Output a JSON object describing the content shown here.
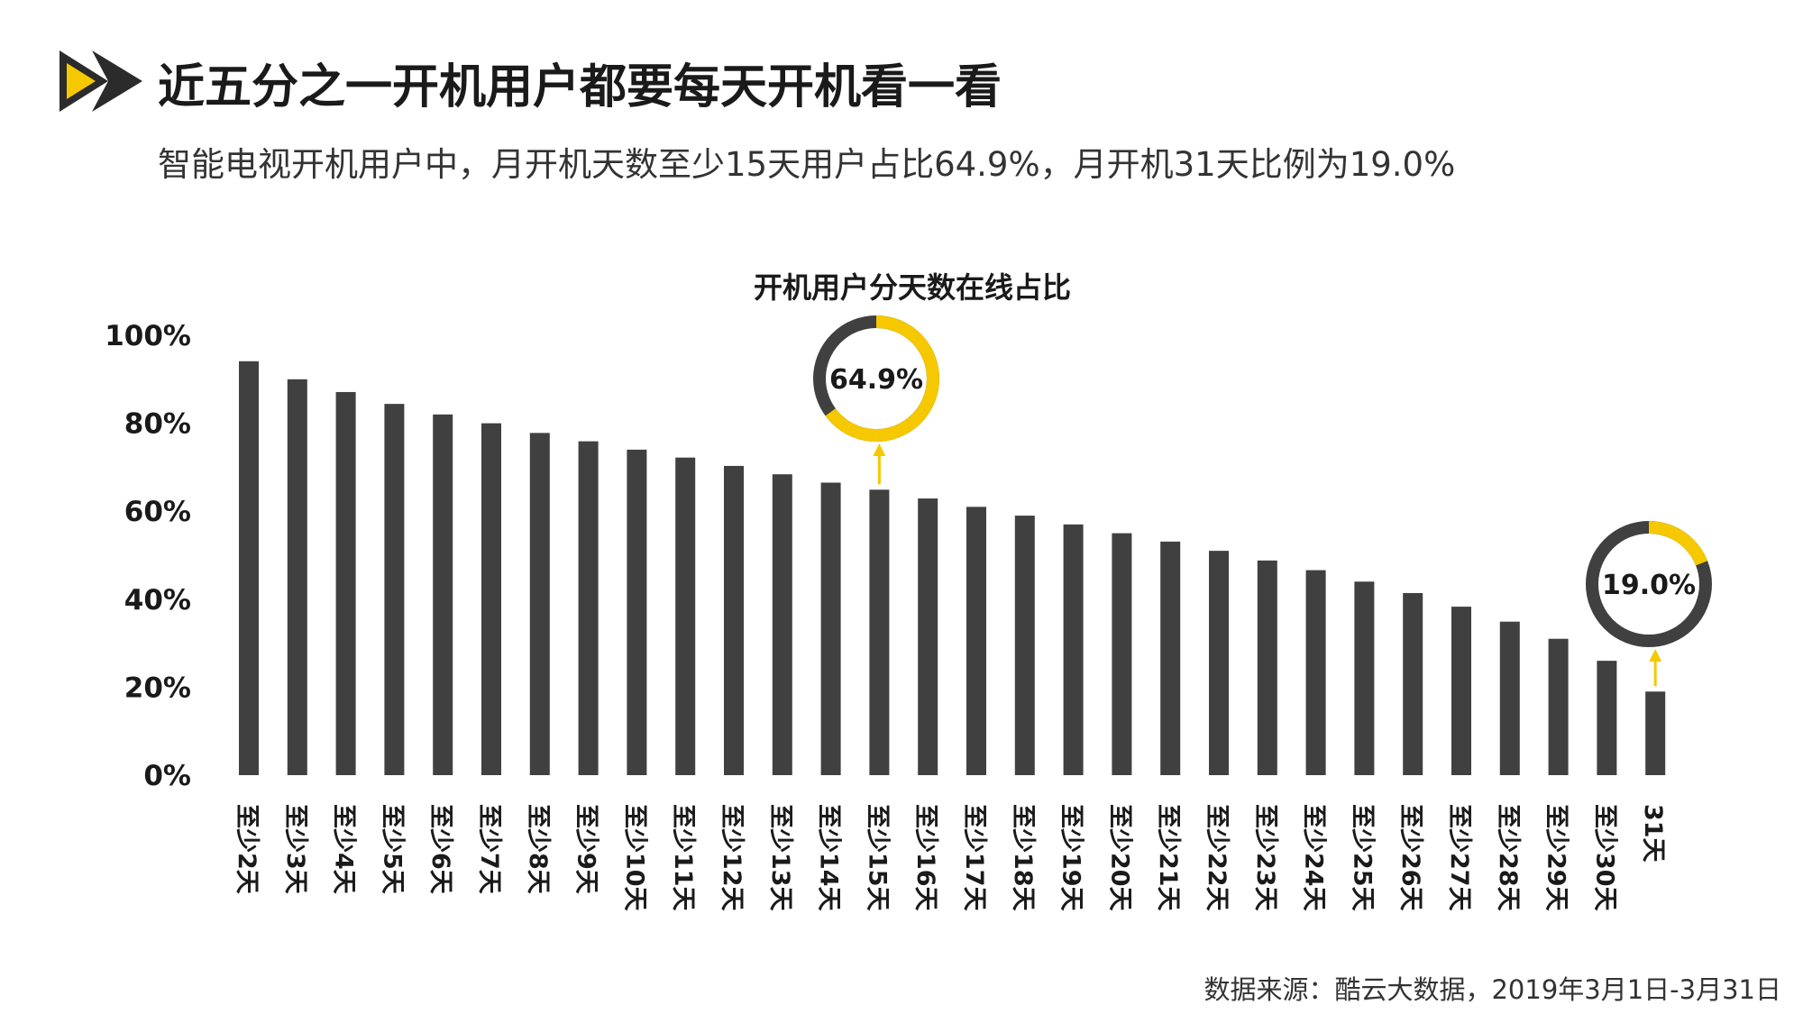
{
  "header": {
    "title": "近五分之一开机用户都要每天开机看一看",
    "subtitle": "智能电视开机用户中，月开机天数至少15天用户占比64.9%，月开机31天比例为19.0%"
  },
  "footer": {
    "source": "数据来源：酷云大数据，2019年3月1日-3月31日"
  },
  "colors": {
    "bar": "#404040",
    "accent": "#f5c800",
    "ring_dark": "#404040",
    "logo_dark": "#2b2b2b"
  },
  "chart_data": {
    "type": "bar",
    "title": "开机用户分天数在线占比",
    "ylim": [
      0,
      100
    ],
    "y_ticks": [
      "0%",
      "20%",
      "40%",
      "60%",
      "80%",
      "100%"
    ],
    "categories": [
      "至少2天",
      "至少3天",
      "至少4天",
      "至少5天",
      "至少6天",
      "至少7天",
      "至少8天",
      "至少9天",
      "至少10天",
      "至少11天",
      "至少12天",
      "至少13天",
      "至少14天",
      "至少15天",
      "至少16天",
      "至少17天",
      "至少18天",
      "至少19天",
      "至少20天",
      "至少21天",
      "至少22天",
      "至少23天",
      "至少24天",
      "至少25天",
      "至少26天",
      "至少27天",
      "至少28天",
      "至少29天",
      "至少30天",
      "31天"
    ],
    "values": [
      94.1,
      90.0,
      87.1,
      84.4,
      82.0,
      80.0,
      77.8,
      75.9,
      74.0,
      72.2,
      70.3,
      68.4,
      66.5,
      64.9,
      62.9,
      61.0,
      59.0,
      57.0,
      55.0,
      53.1,
      51.0,
      48.8,
      46.6,
      44.0,
      41.4,
      38.3,
      34.9,
      31.0,
      26.0,
      19.0
    ],
    "grid": false,
    "annotations": [
      {
        "label": "64.9%",
        "value": 64.9,
        "category_index": 13
      },
      {
        "label": "19.0%",
        "value": 19.0,
        "category_index": 29
      }
    ]
  }
}
